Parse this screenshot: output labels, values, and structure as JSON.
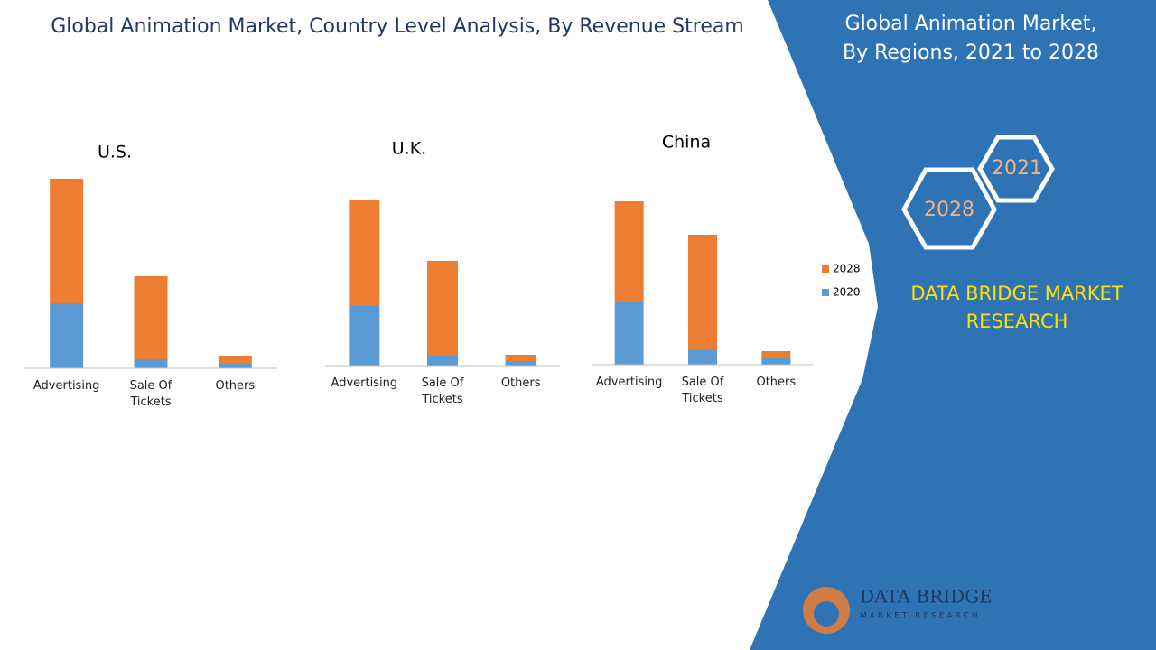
{
  "header": {
    "title": "Global Animation Market, Country Level Analysis, By Revenue Stream"
  },
  "chart_data": [
    {
      "type": "stacked-bar",
      "title": "U.S.",
      "categories": [
        "Advertising",
        "Sale Of Tickets",
        "Others"
      ],
      "series": [
        {
          "name": "2020",
          "color": "#5b9bd5",
          "values": [
            72,
            10,
            5
          ]
        },
        {
          "name": "2028",
          "color": "#ed7d31",
          "values": [
            138,
            92,
            9
          ]
        }
      ]
    },
    {
      "type": "stacked-bar",
      "title": "U.K.",
      "categories": [
        "Advertising",
        "Sale Of Tickets",
        "Others"
      ],
      "series": [
        {
          "name": "2020",
          "color": "#5b9bd5",
          "values": [
            66,
            11,
            5
          ]
        },
        {
          "name": "2028",
          "color": "#ed7d31",
          "values": [
            118,
            105,
            7
          ]
        }
      ]
    },
    {
      "type": "stacked-bar",
      "title": "China",
      "categories": [
        "Advertising",
        "Sale Of Tickets",
        "Others"
      ],
      "series": [
        {
          "name": "2020",
          "color": "#5b9bd5",
          "values": [
            70,
            17,
            7
          ]
        },
        {
          "name": "2028",
          "color": "#ed7d31",
          "values": [
            111,
            127,
            8
          ]
        }
      ]
    }
  ],
  "panel": {
    "title_line1": "Global Animation Market,",
    "title_line2": "By Regions, 2021 to 2028",
    "hex_a": "2021",
    "hex_b": "2028",
    "brand_line1": "DATA BRIDGE MARKET",
    "brand_line2": "RESEARCH",
    "logo_line1": "DATA BRIDGE",
    "logo_line2": "MARKET RESEARCH"
  }
}
